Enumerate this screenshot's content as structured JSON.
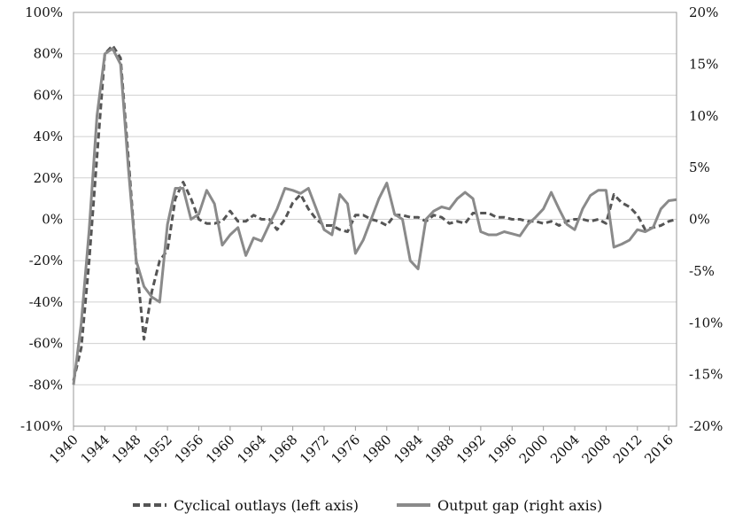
{
  "chart_data": {
    "type": "line",
    "x_ticks": [
      "1940",
      "1944",
      "1948",
      "1952",
      "1956",
      "1960",
      "1964",
      "1968",
      "1972",
      "1976",
      "1980",
      "1984",
      "1988",
      "1992",
      "1996",
      "2000",
      "2004",
      "2008",
      "2012",
      "2016"
    ],
    "left_ticks": [
      "100%",
      "80%",
      "60%",
      "40%",
      "20%",
      "0%",
      "-20%",
      "-40%",
      "-60%",
      "-80%",
      "-100%"
    ],
    "right_ticks": [
      "20%",
      "15%",
      "10%",
      "5%",
      "0%",
      "-5%",
      "-10%",
      "-15%",
      "-20%"
    ],
    "x_range": [
      1940,
      2017
    ],
    "left_ylim": [
      -100,
      100
    ],
    "right_ylim": [
      -20,
      20
    ],
    "grid": true,
    "legend_position": "bottom",
    "series": [
      {
        "name": "Cyclical outlays (left axis)",
        "axis": "left",
        "style": "dashed",
        "color": "#555555",
        "x": [
          1940,
          1941,
          1942,
          1943,
          1944,
          1945,
          1946,
          1947,
          1948,
          1949,
          1950,
          1951,
          1952,
          1953,
          1954,
          1955,
          1956,
          1957,
          1958,
          1959,
          1960,
          1961,
          1962,
          1963,
          1964,
          1965,
          1966,
          1967,
          1968,
          1969,
          1970,
          1971,
          1972,
          1973,
          1974,
          1975,
          1976,
          1977,
          1978,
          1979,
          1980,
          1981,
          1982,
          1983,
          1984,
          1985,
          1986,
          1987,
          1988,
          1989,
          1990,
          1991,
          1992,
          1993,
          1994,
          1995,
          1996,
          1997,
          1998,
          1999,
          2000,
          2001,
          2002,
          2003,
          2004,
          2005,
          2006,
          2007,
          2008,
          2009,
          2010,
          2011,
          2012,
          2013,
          2014,
          2015,
          2016,
          2017
        ],
        "values": [
          -78,
          -62,
          -20,
          30,
          80,
          84,
          78,
          30,
          -20,
          -58,
          -35,
          -20,
          -15,
          10,
          18,
          10,
          0,
          -2,
          -2,
          -1,
          4,
          -1,
          -1,
          2,
          0,
          0,
          -5,
          0,
          8,
          12,
          5,
          0,
          -3,
          -3,
          -5,
          -6,
          2,
          2,
          0,
          -1,
          -3,
          2,
          2,
          1,
          1,
          -1,
          2,
          1,
          -2,
          -1,
          -2,
          3,
          3,
          3,
          1,
          1,
          0,
          0,
          -1,
          -1,
          -2,
          -1,
          -3,
          -1,
          0,
          0,
          -1,
          0,
          -2,
          12,
          8,
          6,
          2,
          -5,
          -4,
          -3,
          -1,
          0
        ]
      },
      {
        "name": "Output gap (right axis)",
        "axis": "right",
        "style": "solid",
        "color": "#8a8a8a",
        "x": [
          1940,
          1941,
          1942,
          1943,
          1944,
          1945,
          1946,
          1947,
          1948,
          1949,
          1950,
          1951,
          1952,
          1953,
          1954,
          1955,
          1956,
          1957,
          1958,
          1959,
          1960,
          1961,
          1962,
          1963,
          1964,
          1965,
          1966,
          1967,
          1968,
          1969,
          1970,
          1971,
          1972,
          1973,
          1974,
          1975,
          1976,
          1977,
          1978,
          1979,
          1980,
          1981,
          1982,
          1983,
          1984,
          1985,
          1986,
          1987,
          1988,
          1989,
          1990,
          1991,
          1992,
          1993,
          1994,
          1995,
          1996,
          1997,
          1998,
          1999,
          2000,
          2001,
          2002,
          2003,
          2004,
          2005,
          2006,
          2007,
          2008,
          2009,
          2010,
          2011,
          2012,
          2013,
          2014,
          2015,
          2016,
          2017
        ],
        "values": [
          -16,
          -10,
          -1,
          10,
          16,
          16.5,
          15,
          5,
          -4,
          -6.5,
          -7.5,
          -8,
          -0.5,
          3,
          3,
          0,
          0.5,
          2.8,
          1.5,
          -2.5,
          -1.5,
          -0.8,
          -3.5,
          -1.8,
          -2.1,
          -0.5,
          1,
          3,
          2.8,
          2.5,
          3,
          1,
          -1,
          -1.5,
          2.4,
          1.5,
          -3.3,
          -2,
          0,
          2,
          3.5,
          0.5,
          0,
          -4,
          -4.8,
          0,
          0.8,
          1.2,
          1,
          2,
          2.6,
          2,
          -1.2,
          -1.5,
          -1.5,
          -1.2,
          -1.4,
          -1.6,
          -0.5,
          0.2,
          1,
          2.6,
          1,
          -0.5,
          -1,
          1,
          2.3,
          2.8,
          2.8,
          -2.7,
          -2.4,
          -2,
          -1,
          -1.2,
          -0.8,
          1,
          1.8,
          1.9
        ]
      }
    ]
  }
}
